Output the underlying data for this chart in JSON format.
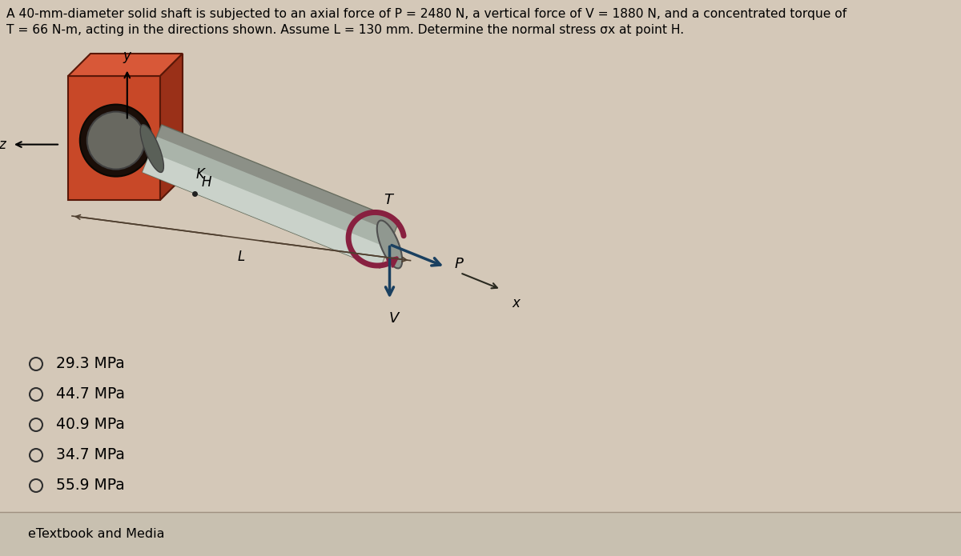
{
  "background_color": "#d4c8b8",
  "title_line1": "A 40-mm-diameter solid shaft is subjected to an axial force of P = 2480 N, a vertical force of V = 1880 N, and a concentrated torque of",
  "title_line2": "T = 66 N-m, acting in the directions shown. Assume L = 130 mm. Determine the normal stress σx at point H.",
  "title_fontsize": 11.2,
  "options": [
    "29.3 MPa",
    "44.7 MPa",
    "40.9 MPa",
    "34.7 MPa",
    "55.9 MPa"
  ],
  "option_fontsize": 13.5,
  "footer_text": "eTextbook and Media",
  "footer_fontsize": 11.5,
  "wall_front_color": "#c84828",
  "wall_top_color": "#d85838",
  "wall_right_color": "#9a3018",
  "wall_ring_outer": "#2a1808",
  "wall_ring_inner": "#686860",
  "shaft_body_color": "#aab4aa",
  "shaft_top_color": "#d0d8d0",
  "shaft_bottom_color": "#787870",
  "shaft_end_color": "#909890",
  "torque_color": "#882040",
  "arrow_color": "#1a4060",
  "axis_color": "#2a2a20"
}
